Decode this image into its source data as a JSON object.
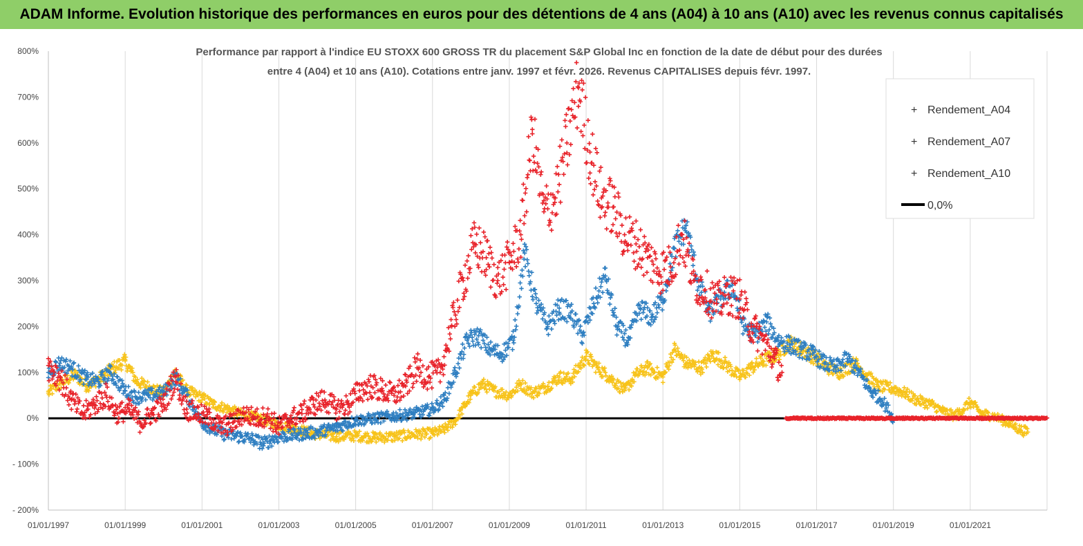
{
  "banner": {
    "title": "ADAM Informe. Evolution historique des performances en euros pour des détentions de 4 ans (A04) à 10 ans (A10) avec les revenus connus capitalisés"
  },
  "chart_data": {
    "type": "scatter",
    "title_lines": [
      "Performance par rapport à l'indice EU STOXX 600 GROSS TR  du placement S&P Global Inc en fonction de la date de début pour des durées",
      "entre 4 (A04) et 10 ans (A10). Cotations entre janv. 1997 et févr. 2026. Revenus CAPITALISES depuis févr. 1997."
    ],
    "y_ticks": [
      "800%",
      "700%",
      "600%",
      "500%",
      "400%",
      "300%",
      "200%",
      "100%",
      "0%",
      "- 100%",
      "- 200%"
    ],
    "ylim": [
      -200,
      800
    ],
    "x_ticks": [
      "01/01/1997",
      "01/01/1999",
      "01/01/2001",
      "01/01/2003",
      "01/01/2005",
      "01/01/2007",
      "01/01/2009",
      "01/01/2011",
      "01/01/2013",
      "01/01/2015",
      "01/01/2017",
      "01/01/2019",
      "01/01/2021"
    ],
    "xlim": [
      1997.0,
      2023.0
    ],
    "grid": "vertical",
    "legend_position": "top-right",
    "colors": {
      "A04": "#f7c31a",
      "A07": "#2f7fc1",
      "A10": "#e8232a",
      "zero": "#000000"
    },
    "series": [
      {
        "name": "Rendement_A04",
        "x": [
          1997.0,
          1997.3,
          1997.7,
          1998.0,
          1998.3,
          1998.7,
          1999.0,
          1999.3,
          1999.7,
          2000.0,
          2000.3,
          2000.6,
          2001.0,
          2001.3,
          2001.7,
          2002.0,
          2002.5,
          2003.0,
          2003.5,
          2004.0,
          2004.5,
          2005.0,
          2005.5,
          2006.0,
          2006.5,
          2007.0,
          2007.3,
          2007.6,
          2008.0,
          2008.3,
          2008.6,
          2009.0,
          2009.3,
          2009.6,
          2010.0,
          2010.3,
          2010.6,
          2011.0,
          2011.3,
          2011.6,
          2012.0,
          2012.3,
          2012.6,
          2013.0,
          2013.3,
          2013.6,
          2014.0,
          2014.3,
          2014.6,
          2015.0,
          2015.3,
          2015.6,
          2016.0,
          2016.3,
          2016.6,
          2017.0,
          2017.3,
          2017.6,
          2018.0,
          2018.3,
          2018.6,
          2019.0,
          2019.3,
          2019.6,
          2020.0,
          2020.3,
          2020.6,
          2021.0,
          2021.3,
          2021.6,
          2022.0,
          2022.3,
          2022.5
        ],
        "values": [
          55,
          75,
          95,
          70,
          85,
          110,
          125,
          80,
          65,
          55,
          100,
          60,
          45,
          30,
          20,
          10,
          0,
          -15,
          -25,
          -35,
          -40,
          -38,
          -42,
          -40,
          -35,
          -33,
          -25,
          -5,
          50,
          75,
          60,
          50,
          75,
          55,
          70,
          90,
          85,
          135,
          110,
          90,
          60,
          95,
          110,
          90,
          150,
          120,
          110,
          140,
          120,
          90,
          110,
          125,
          140,
          165,
          150,
          130,
          110,
          100,
          120,
          95,
          70,
          65,
          55,
          40,
          30,
          15,
          5,
          35,
          10,
          5,
          -10,
          -25,
          -30
        ]
      },
      {
        "name": "Rendement_A07",
        "x": [
          1997.0,
          1997.3,
          1997.6,
          1998.0,
          1998.3,
          1998.6,
          1999.0,
          1999.3,
          1999.6,
          2000.0,
          2000.3,
          2000.6,
          2001.0,
          2001.3,
          2001.6,
          2002.0,
          2002.3,
          2002.6,
          2003.0,
          2003.5,
          2004.0,
          2004.5,
          2005.0,
          2005.5,
          2006.0,
          2006.5,
          2007.0,
          2007.3,
          2007.6,
          2007.9,
          2008.2,
          2008.5,
          2008.8,
          2009.1,
          2009.4,
          2009.7,
          2010.0,
          2010.3,
          2010.6,
          2010.9,
          2011.2,
          2011.5,
          2011.8,
          2012.1,
          2012.4,
          2012.7,
          2013.0,
          2013.3,
          2013.6,
          2013.9,
          2014.2,
          2014.5,
          2014.8,
          2015.1,
          2015.4,
          2015.7,
          2016.0,
          2016.3,
          2016.6,
          2016.9,
          2017.2,
          2017.5,
          2017.8,
          2018.1,
          2018.4,
          2018.7,
          2019.0
        ],
        "values": [
          100,
          120,
          110,
          85,
          80,
          100,
          60,
          45,
          50,
          55,
          90,
          50,
          -10,
          -25,
          -35,
          -40,
          -45,
          -55,
          -40,
          -35,
          -30,
          -20,
          -5,
          0,
          5,
          10,
          20,
          40,
          100,
          170,
          180,
          150,
          140,
          170,
          360,
          250,
          200,
          240,
          230,
          180,
          250,
          310,
          200,
          170,
          240,
          220,
          260,
          370,
          420,
          300,
          230,
          260,
          290,
          200,
          180,
          210,
          170,
          160,
          150,
          140,
          120,
          110,
          130,
          100,
          60,
          40,
          0
        ]
      },
      {
        "name": "Rendement_A10",
        "x": [
          1997.0,
          1997.3,
          1997.6,
          1997.9,
          1998.2,
          1998.5,
          1998.8,
          1999.1,
          1999.4,
          1999.7,
          2000.0,
          2000.3,
          2000.6,
          2000.9,
          2001.2,
          2001.5,
          2001.8,
          2002.1,
          2002.4,
          2002.7,
          2003.0,
          2003.3,
          2003.6,
          2003.9,
          2004.2,
          2004.5,
          2004.8,
          2005.1,
          2005.4,
          2005.7,
          2006.0,
          2006.3,
          2006.6,
          2006.9,
          2007.2,
          2007.5,
          2007.8,
          2008.1,
          2008.4,
          2008.7,
          2009.0,
          2009.3,
          2009.6,
          2009.9,
          2010.2,
          2010.5,
          2010.8,
          2011.1,
          2011.4,
          2011.7,
          2012.0,
          2012.3,
          2012.6,
          2012.9,
          2013.2,
          2013.5,
          2013.8,
          2014.1,
          2014.4,
          2014.7,
          2015.0,
          2015.3,
          2015.6,
          2015.9,
          2016.1
        ],
        "values": [
          115,
          90,
          40,
          10,
          30,
          50,
          10,
          20,
          -10,
          10,
          30,
          90,
          20,
          10,
          0,
          -20,
          -10,
          10,
          0,
          5,
          -20,
          0,
          10,
          30,
          40,
          20,
          30,
          60,
          70,
          60,
          50,
          70,
          110,
          90,
          100,
          200,
          300,
          380,
          350,
          300,
          340,
          400,
          620,
          450,
          480,
          600,
          720,
          580,
          480,
          460,
          400,
          380,
          350,
          320,
          330,
          400,
          300,
          280,
          250,
          270,
          260,
          200,
          170,
          130,
          100
        ]
      }
    ],
    "zero_line_label": "0,0%",
    "zero_value": 0,
    "a10_zero_segment": [
      2016.2,
      2023.0
    ]
  }
}
